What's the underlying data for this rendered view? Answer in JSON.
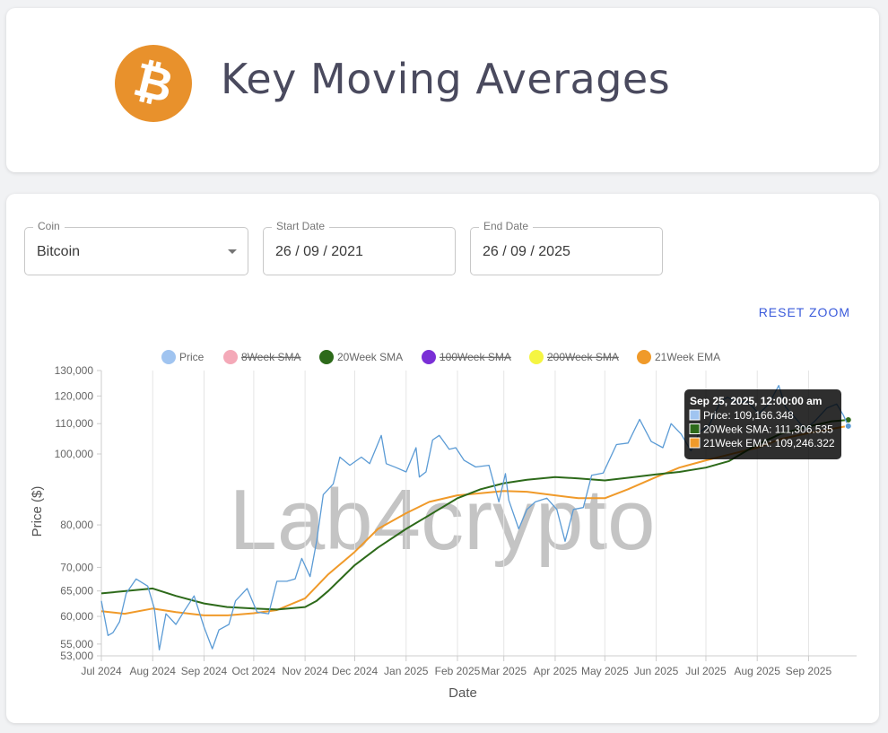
{
  "header": {
    "title": "Key Moving Averages",
    "logo_symbol": "₿",
    "logo_color": "#e8912c"
  },
  "filters": {
    "coin": {
      "label": "Coin",
      "value": "Bitcoin"
    },
    "start_date": {
      "label": "Start Date",
      "value": "26 / 09 / 2021"
    },
    "end_date": {
      "label": "End Date",
      "value": "26 / 09 / 2025"
    },
    "reset_label": "RESET ZOOM"
  },
  "watermark": "Lab4crypto",
  "chart_data": {
    "type": "line",
    "xlabel": "Date",
    "ylabel": "Price ($)",
    "yscale": "log",
    "ylim": [
      53000,
      130000
    ],
    "y_ticks": [
      53000,
      55000,
      60000,
      65000,
      70000,
      80000,
      100000,
      110000,
      120000,
      130000
    ],
    "y_tick_labels": [
      "53,000",
      "55,000",
      "60,000",
      "65,000",
      "70,000",
      "80,000",
      "100,000",
      "110,000",
      "120,000",
      "130,000"
    ],
    "xlim": [
      "2024-07-01",
      "2025-09-30"
    ],
    "x_ticks": [
      "2024-07-01",
      "2024-08-01",
      "2024-09-01",
      "2024-10-01",
      "2024-11-01",
      "2024-12-01",
      "2025-01-01",
      "2025-02-01",
      "2025-03-01",
      "2025-04-01",
      "2025-05-01",
      "2025-06-01",
      "2025-07-01",
      "2025-08-01",
      "2025-09-01"
    ],
    "x_tick_labels": [
      "Jul 2024",
      "Aug 2024",
      "Sep 2024",
      "Oct 2024",
      "Nov 2024",
      "Dec 2024",
      "Jan 2025",
      "Feb 2025",
      "Mar 2025",
      "Apr 2025",
      "May 2025",
      "Jun 2025",
      "Jul 2025",
      "Aug 2025",
      "Sep 2025"
    ],
    "grid": "vertical",
    "legend_position": "top",
    "legend": [
      {
        "name": "Price",
        "color": "#a0c4f0",
        "hidden": false
      },
      {
        "name": "8Week SMA",
        "color": "#f4a9b8",
        "hidden": true
      },
      {
        "name": "20Week SMA",
        "color": "#2d6a1a",
        "hidden": false
      },
      {
        "name": "100Week SMA",
        "color": "#7a2fd6",
        "hidden": true
      },
      {
        "name": "200Week SMA",
        "color": "#f5f542",
        "hidden": true
      },
      {
        "name": "21Week EMA",
        "color": "#f09a2a",
        "hidden": false
      }
    ],
    "series": [
      {
        "name": "Price",
        "color": "#5b9bd5",
        "x": [
          "2024-07-01",
          "2024-07-05",
          "2024-07-08",
          "2024-07-12",
          "2024-07-16",
          "2024-07-22",
          "2024-07-29",
          "2024-08-02",
          "2024-08-05",
          "2024-08-09",
          "2024-08-15",
          "2024-08-20",
          "2024-08-26",
          "2024-09-01",
          "2024-09-06",
          "2024-09-10",
          "2024-09-16",
          "2024-09-20",
          "2024-09-27",
          "2024-10-03",
          "2024-10-10",
          "2024-10-15",
          "2024-10-21",
          "2024-10-26",
          "2024-10-30",
          "2024-11-04",
          "2024-11-08",
          "2024-11-12",
          "2024-11-18",
          "2024-11-22",
          "2024-11-28",
          "2024-12-05",
          "2024-12-10",
          "2024-12-17",
          "2024-12-20",
          "2024-12-26",
          "2025-01-01",
          "2025-01-07",
          "2025-01-09",
          "2025-01-13",
          "2025-01-17",
          "2025-01-21",
          "2025-01-27",
          "2025-01-31",
          "2025-02-05",
          "2025-02-12",
          "2025-02-20",
          "2025-02-26",
          "2025-03-02",
          "2025-03-04",
          "2025-03-10",
          "2025-03-15",
          "2025-03-20",
          "2025-03-27",
          "2025-04-02",
          "2025-04-07",
          "2025-04-12",
          "2025-04-18",
          "2025-04-23",
          "2025-04-30",
          "2025-05-08",
          "2025-05-15",
          "2025-05-22",
          "2025-05-29",
          "2025-06-05",
          "2025-06-10",
          "2025-06-16",
          "2025-06-22",
          "2025-06-27",
          "2025-07-03",
          "2025-07-10",
          "2025-07-14",
          "2025-07-20",
          "2025-07-26",
          "2025-08-02",
          "2025-08-08",
          "2025-08-14",
          "2025-08-18",
          "2025-08-24",
          "2025-08-30",
          "2025-09-05",
          "2025-09-12",
          "2025-09-18",
          "2025-09-22",
          "2025-09-25"
        ],
        "values": [
          63000,
          56500,
          57000,
          59000,
          64500,
          67500,
          66000,
          61500,
          54000,
          60500,
          58500,
          61000,
          64000,
          58000,
          54200,
          57500,
          58500,
          63000,
          65500,
          60800,
          60500,
          67000,
          67000,
          67500,
          72000,
          68000,
          76000,
          88000,
          91000,
          99000,
          96500,
          99000,
          97000,
          106000,
          97000,
          95800,
          94500,
          102000,
          93000,
          94500,
          104500,
          106000,
          101500,
          102000,
          98000,
          96000,
          96500,
          86000,
          94000,
          86500,
          79000,
          84000,
          86000,
          87000,
          84000,
          76000,
          84000,
          84500,
          93500,
          94200,
          103000,
          103500,
          111500,
          104000,
          102000,
          110000,
          106500,
          101000,
          107000,
          109500,
          118000,
          119500,
          117500,
          118000,
          113500,
          117000,
          124000,
          116000,
          112000,
          108000,
          111000,
          115500,
          117000,
          113000,
          109166
        ]
      },
      {
        "name": "20Week SMA",
        "color": "#2d6a1a",
        "x": [
          "2024-07-01",
          "2024-08-01",
          "2024-08-15",
          "2024-09-01",
          "2024-09-15",
          "2024-10-01",
          "2024-10-15",
          "2024-11-01",
          "2024-11-08",
          "2024-11-15",
          "2024-12-01",
          "2024-12-15",
          "2025-01-01",
          "2025-01-15",
          "2025-02-01",
          "2025-02-15",
          "2025-03-01",
          "2025-03-15",
          "2025-04-01",
          "2025-04-15",
          "2025-05-01",
          "2025-05-15",
          "2025-06-01",
          "2025-06-15",
          "2025-07-01",
          "2025-07-15",
          "2025-08-01",
          "2025-08-15",
          "2025-09-01",
          "2025-09-15",
          "2025-09-25"
        ],
        "values": [
          64500,
          65500,
          64000,
          62500,
          61800,
          61500,
          61300,
          61800,
          63000,
          65000,
          70500,
          74500,
          79000,
          82500,
          87000,
          89500,
          91200,
          92200,
          93000,
          92600,
          92000,
          92800,
          93800,
          94500,
          95800,
          97800,
          103000,
          106500,
          109000,
          110800,
          111306
        ]
      },
      {
        "name": "21Week EMA",
        "color": "#f09a2a",
        "x": [
          "2024-07-01",
          "2024-07-15",
          "2024-08-01",
          "2024-08-15",
          "2024-09-01",
          "2024-09-15",
          "2024-10-01",
          "2024-10-15",
          "2024-11-01",
          "2024-11-15",
          "2024-12-01",
          "2024-12-15",
          "2025-01-01",
          "2025-01-15",
          "2025-02-01",
          "2025-02-15",
          "2025-03-01",
          "2025-03-15",
          "2025-04-01",
          "2025-04-15",
          "2025-05-01",
          "2025-05-15",
          "2025-06-01",
          "2025-06-15",
          "2025-07-01",
          "2025-07-15",
          "2025-08-01",
          "2025-08-15",
          "2025-09-01",
          "2025-09-15",
          "2025-09-25"
        ],
        "values": [
          61000,
          60500,
          61500,
          60800,
          60200,
          60200,
          60600,
          61200,
          63500,
          68500,
          73500,
          79000,
          83000,
          86000,
          87800,
          88400,
          89000,
          88800,
          87800,
          87000,
          87000,
          89500,
          93000,
          95800,
          98000,
          99800,
          102000,
          104800,
          106800,
          108200,
          109246
        ]
      }
    ],
    "tooltip": {
      "title": "Sep 25, 2025, 12:00:00 am",
      "rows": [
        {
          "label": "Price: 109,166.348",
          "color": "#a0c4f0"
        },
        {
          "label": "20Week SMA: 111,306.535",
          "color": "#2d6a1a"
        },
        {
          "label": "21Week EMA: 109,246.322",
          "color": "#f09a2a"
        }
      ]
    }
  }
}
